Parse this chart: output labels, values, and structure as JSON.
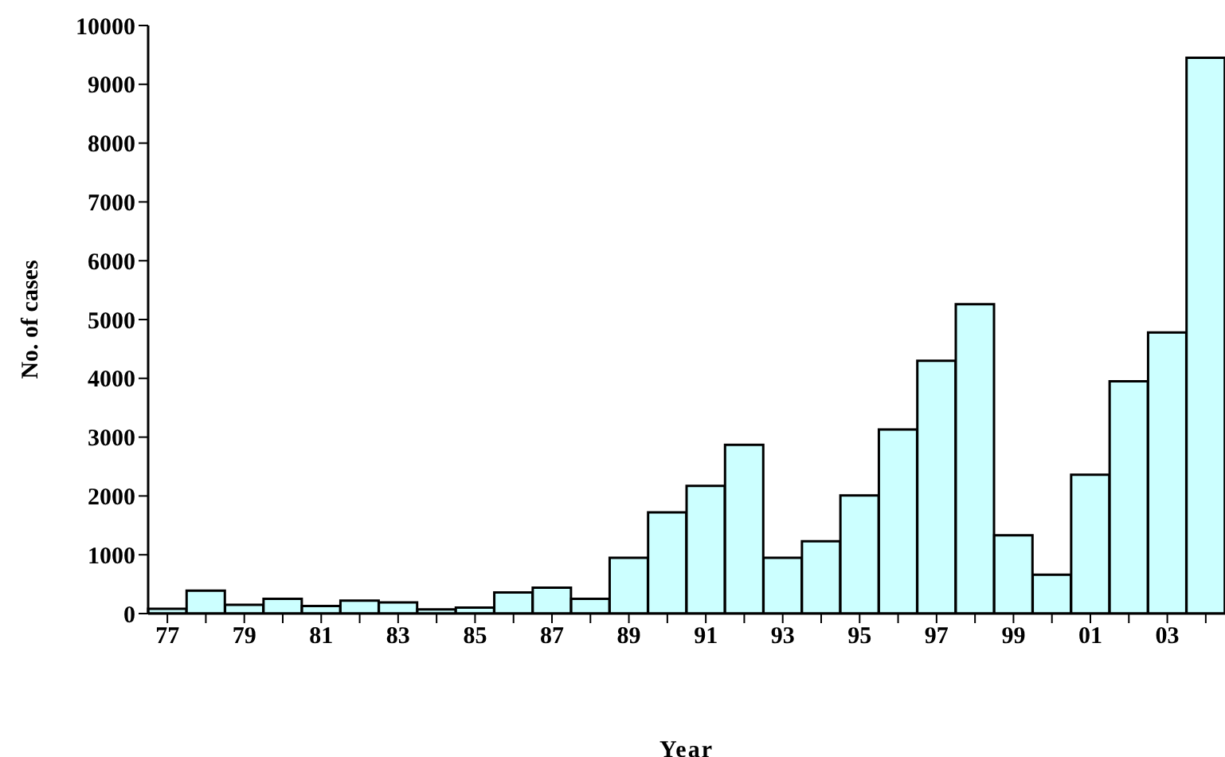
{
  "chart_data": {
    "type": "bar",
    "xlabel": "Year",
    "ylabel": "No. of cases",
    "categories": [
      "77",
      null,
      "79",
      null,
      "81",
      null,
      "83",
      null,
      "85",
      null,
      "87",
      null,
      "89",
      null,
      "91",
      null,
      "93",
      null,
      "95",
      null,
      "97",
      null,
      "99",
      null,
      "01",
      null,
      "03",
      null
    ],
    "values": [
      80,
      390,
      150,
      250,
      130,
      220,
      190,
      70,
      100,
      360,
      440,
      250,
      950,
      1720,
      2170,
      2870,
      950,
      1230,
      2010,
      3130,
      4300,
      5260,
      1330,
      660,
      2360,
      3950,
      4780,
      9450
    ],
    "color": "#ccffff",
    "ylim": [
      0,
      10000
    ],
    "yticks": [
      0,
      1000,
      2000,
      3000,
      4000,
      5000,
      6000,
      7000,
      8000,
      9000,
      10000
    ],
    "grid": false,
    "legend": false
  }
}
